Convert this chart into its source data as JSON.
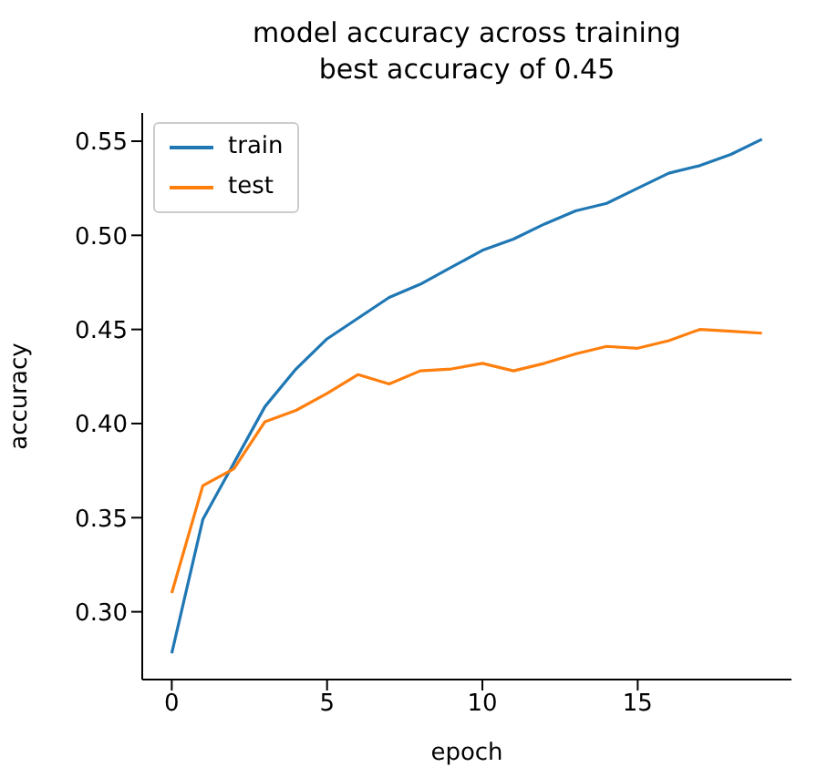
{
  "chart_data": {
    "type": "line",
    "title": "model accuracy across training",
    "subtitle": "best accuracy of 0.45",
    "xlabel": "epoch",
    "ylabel": "accuracy",
    "x": [
      0,
      1,
      2,
      3,
      4,
      5,
      6,
      7,
      8,
      9,
      10,
      11,
      12,
      13,
      14,
      15,
      16,
      17,
      18,
      19
    ],
    "series": [
      {
        "name": "train",
        "color": "#1f77b4",
        "values": [
          0.278,
          0.349,
          0.379,
          0.409,
          0.429,
          0.445,
          0.456,
          0.467,
          0.474,
          0.483,
          0.492,
          0.498,
          0.506,
          0.513,
          0.517,
          0.525,
          0.533,
          0.537,
          0.543,
          0.551
        ]
      },
      {
        "name": "test",
        "color": "#ff7f0e",
        "values": [
          0.31,
          0.367,
          0.376,
          0.401,
          0.407,
          0.416,
          0.426,
          0.421,
          0.428,
          0.429,
          0.432,
          0.428,
          0.432,
          0.437,
          0.441,
          0.44,
          0.444,
          0.45,
          0.449,
          0.448
        ]
      }
    ],
    "xlim": [
      -0.95,
      19.95
    ],
    "xticks": [
      0,
      5,
      10,
      15
    ],
    "ylim": [
      0.264,
      0.565
    ],
    "yticks": [
      {
        "value": 0.3,
        "label": "0.30"
      },
      {
        "value": 0.35,
        "label": "0.35"
      },
      {
        "value": 0.4,
        "label": "0.40"
      },
      {
        "value": 0.45,
        "label": "0.45"
      },
      {
        "value": 0.5,
        "label": "0.50"
      },
      {
        "value": 0.55,
        "label": "0.55"
      }
    ],
    "grid": false,
    "legend": "top left",
    "marker": "none",
    "line_style": "solid"
  }
}
